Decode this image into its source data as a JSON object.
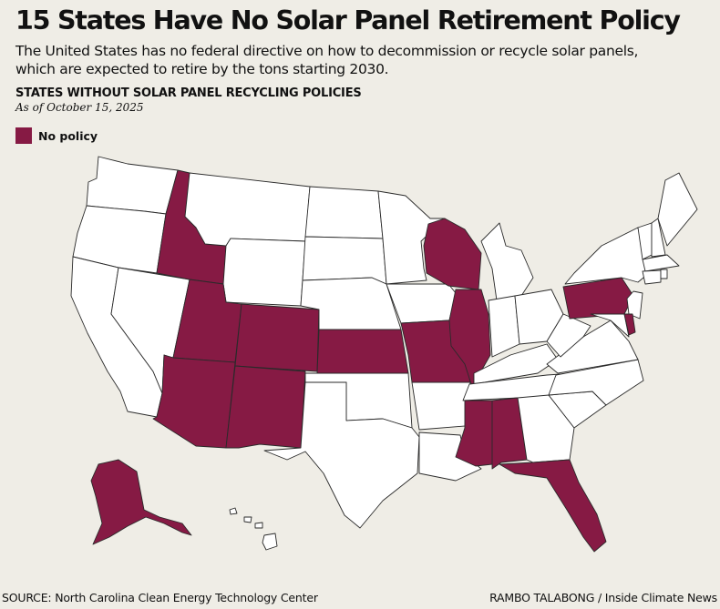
{
  "header": {
    "title": "15 States Have No Solar Panel Retirement Policy",
    "subtitle": "The United States has no federal directive on how to decommission or recycle solar panels, which are expected to retire by the tons starting 2030."
  },
  "map": {
    "title": "STATES WITHOUT SOLAR PANEL RECYCLING POLICIES",
    "as_of": "As of October 15, 2025",
    "legend": {
      "label": "No policy",
      "color": "#861a44"
    },
    "default_fill": "#ffffff",
    "states_no_policy": [
      "Idaho",
      "Utah",
      "Arizona",
      "Colorado",
      "New Mexico",
      "Kansas",
      "Missouri",
      "Wisconsin",
      "Illinois",
      "Mississippi",
      "Alabama",
      "Florida",
      "Pennsylvania",
      "Delaware",
      "Alaska"
    ]
  },
  "footer": {
    "source": "SOURCE: North Carolina Clean Energy Technology Center",
    "credit": "RAMBO TALABONG / Inside Climate News"
  }
}
